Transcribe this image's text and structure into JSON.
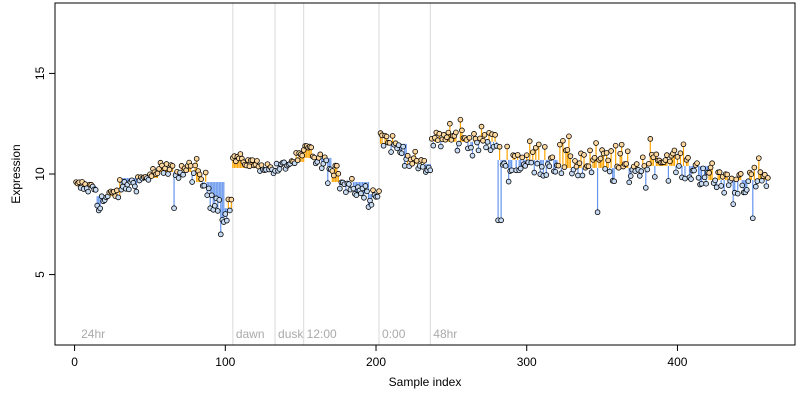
{
  "chart_data": {
    "type": "scatter",
    "title": "",
    "xlabel": "Sample index",
    "ylabel": "Expression",
    "xlim": [
      -13,
      478
    ],
    "ylim": [
      1.5,
      18.5
    ],
    "xticks": [
      0,
      100,
      200,
      300,
      400
    ],
    "yticks": [
      5,
      10,
      15
    ],
    "grid": false,
    "legend": "none",
    "colors": {
      "up_segment": "#ffa500",
      "down_segment": "#6495ed",
      "point_fill_high": "#ffd9a0",
      "point_fill_low": "#c8ddf5",
      "point_stroke": "#000000",
      "divider": "#d9d9d9",
      "annotation": "#aaaaaa"
    },
    "dividers": [
      {
        "x": 105,
        "label": "dawn"
      },
      {
        "x": 133,
        "label": "dusk"
      },
      {
        "x": 152,
        "label": "12:00"
      },
      {
        "x": 202,
        "label": "0:00"
      },
      {
        "x": 236,
        "label": "48hr"
      }
    ],
    "annotations": [
      {
        "x": 3,
        "text": "24hr"
      }
    ],
    "segments": [
      {
        "x": [
          1,
          14
        ],
        "y": [
          9.4,
          9.3
        ],
        "level": 9.4,
        "noise": 0.35
      },
      {
        "x": [
          15,
          30
        ],
        "y": [
          8.5,
          9.2
        ],
        "level": 8.9,
        "noise": 0.4
      },
      {
        "x": [
          31,
          55
        ],
        "y": [
          9.3,
          10.1
        ],
        "level": 9.8,
        "noise": 0.35
      },
      {
        "x": [
          56,
          80
        ],
        "y": [
          10.1,
          10.2
        ],
        "level": 10.1,
        "noise": 0.5
      },
      {
        "x": [
          81,
          99
        ],
        "y": [
          10.0,
          8.2
        ],
        "level": 9.6,
        "noise": 0.6
      },
      {
        "x": [
          100,
          104
        ],
        "y": [
          7.8,
          8.7
        ],
        "level": 8.3,
        "noise": 0.5
      },
      {
        "x": [
          105,
          133
        ],
        "y": [
          10.8,
          10.2
        ],
        "level": 10.3,
        "noise": 0.25
      },
      {
        "x": [
          134,
          152
        ],
        "y": [
          10.2,
          10.9
        ],
        "level": 10.6,
        "noise": 0.3
      },
      {
        "x": [
          153,
          170
        ],
        "y": [
          11.3,
          10.1
        ],
        "level": 10.8,
        "noise": 0.5
      },
      {
        "x": [
          171,
          195
        ],
        "y": [
          10.0,
          9.0
        ],
        "level": 9.6,
        "noise": 0.55
      },
      {
        "x": [
          196,
          202
        ],
        "y": [
          8.9,
          9.2
        ],
        "level": 9.0,
        "noise": 0.4
      },
      {
        "x": [
          203,
          220
        ],
        "y": [
          11.9,
          11.0
        ],
        "level": 11.5,
        "noise": 0.45
      },
      {
        "x": [
          221,
          236
        ],
        "y": [
          10.8,
          10.1
        ],
        "level": 10.5,
        "noise": 0.4
      },
      {
        "x": [
          237,
          280
        ],
        "y": [
          11.8,
          11.6
        ],
        "level": 11.6,
        "noise": 0.6
      },
      {
        "x": [
          281,
          320
        ],
        "y": [
          10.6,
          10.8
        ],
        "level": 10.7,
        "noise": 0.85
      },
      {
        "x": [
          321,
          380
        ],
        "y": [
          10.7,
          10.3
        ],
        "level": 10.3,
        "noise": 0.9
      },
      {
        "x": [
          381,
          420
        ],
        "y": [
          11.0,
          10.0
        ],
        "level": 10.4,
        "noise": 0.75
      },
      {
        "x": [
          421,
          460
        ],
        "y": [
          9.7,
          9.8
        ],
        "level": 9.7,
        "noise": 0.85
      }
    ],
    "outliers": [
      {
        "x": 97,
        "y": 7.0
      },
      {
        "x": 281,
        "y": 7.7
      },
      {
        "x": 283,
        "y": 7.7
      },
      {
        "x": 347,
        "y": 8.1
      },
      {
        "x": 437,
        "y": 8.5
      },
      {
        "x": 450,
        "y": 7.8
      },
      {
        "x": 256,
        "y": 12.7
      },
      {
        "x": 249,
        "y": 12.5
      },
      {
        "x": 66,
        "y": 8.3
      },
      {
        "x": 90,
        "y": 8.3
      }
    ]
  }
}
